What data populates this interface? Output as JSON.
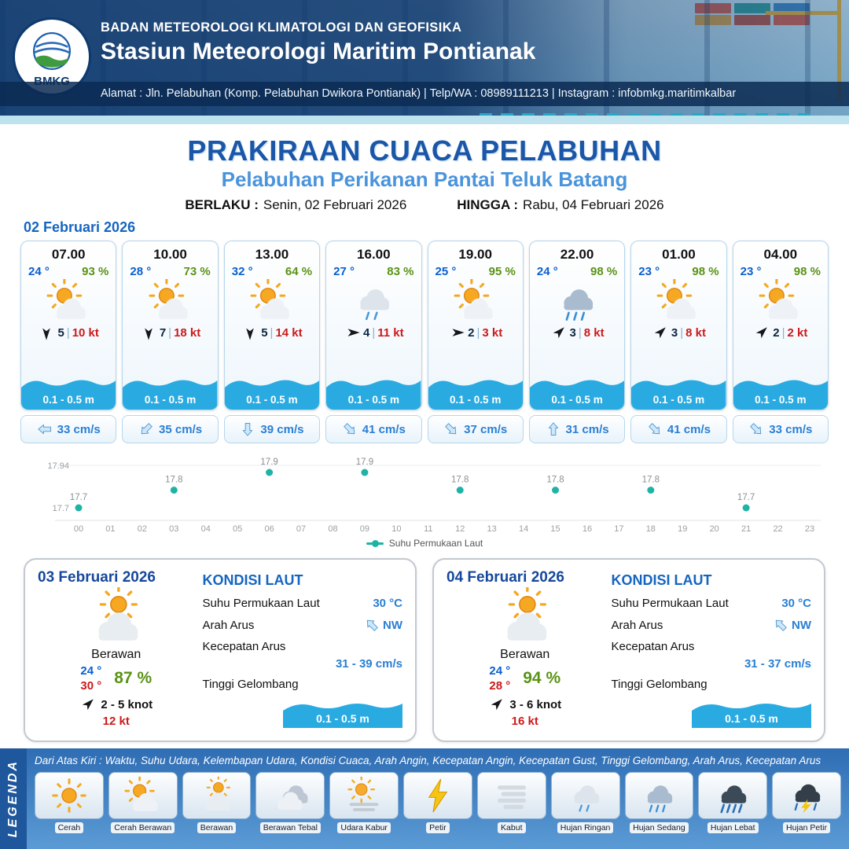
{
  "header": {
    "logo_text": "BMKG",
    "agency": "BADAN METEOROLOGI KLIMATOLOGI DAN GEOFISIKA",
    "station": "Stasiun Meteorologi Maritim Pontianak",
    "address": "Alamat : Jln. Pelabuhan (Komp. Pelabuhan Dwikora Pontianak) | Telp/WA : 08989111213 | Instagram : infobmkg.maritimkalbar"
  },
  "title": {
    "main": "PRAKIRAAN CUACA PELABUHAN",
    "subtitle": "Pelabuhan Perikanan Pantai Teluk Batang",
    "berlaku_label": "BERLAKU :",
    "berlaku_value": "Senin, 02 Februari 2026",
    "hingga_label": "HINGGA :",
    "hingga_value": "Rabu, 04 Februari 2026"
  },
  "forecast": {
    "date": "02 Februari 2026",
    "cards": [
      {
        "time": "07.00",
        "temp": "24 °",
        "humidity": "93 %",
        "icon": "cerah-berawan",
        "wind_dir": "down",
        "wind_speed": "5",
        "wind_gust": "10 kt",
        "wave": "0.1 - 0.5 m",
        "current_dir": "left",
        "current": "33 cm/s"
      },
      {
        "time": "10.00",
        "temp": "28 °",
        "humidity": "73 %",
        "icon": "cerah-berawan",
        "wind_dir": "down",
        "wind_speed": "7",
        "wind_gust": "18 kt",
        "wave": "0.1 - 0.5 m",
        "current_dir": "down-left",
        "current": "35 cm/s"
      },
      {
        "time": "13.00",
        "temp": "32 °",
        "humidity": "64 %",
        "icon": "cerah-berawan",
        "wind_dir": "down",
        "wind_speed": "5",
        "wind_gust": "14 kt",
        "wave": "0.1 - 0.5 m",
        "current_dir": "down",
        "current": "39 cm/s"
      },
      {
        "time": "16.00",
        "temp": "27 °",
        "humidity": "83 %",
        "icon": "hujan-ringan",
        "wind_dir": "right",
        "wind_speed": "4",
        "wind_gust": "11 kt",
        "wave": "0.1 - 0.5 m",
        "current_dir": "down-right",
        "current": "41 cm/s"
      },
      {
        "time": "19.00",
        "temp": "25 °",
        "humidity": "95 %",
        "icon": "cerah-berawan",
        "wind_dir": "right",
        "wind_speed": "2",
        "wind_gust": "3 kt",
        "wave": "0.1 - 0.5 m",
        "current_dir": "down-right",
        "current": "37 cm/s"
      },
      {
        "time": "22.00",
        "temp": "24 °",
        "humidity": "98 %",
        "icon": "hujan-sedang",
        "wind_dir": "up-right",
        "wind_speed": "3",
        "wind_gust": "8 kt",
        "wave": "0.1 - 0.5 m",
        "current_dir": "up",
        "current": "31 cm/s"
      },
      {
        "time": "01.00",
        "temp": "23 °",
        "humidity": "98 %",
        "icon": "cerah-berawan",
        "wind_dir": "up-right",
        "wind_speed": "3",
        "wind_gust": "8 kt",
        "wave": "0.1 - 0.5 m",
        "current_dir": "down-right",
        "current": "41 cm/s"
      },
      {
        "time": "04.00",
        "temp": "23 °",
        "humidity": "98 %",
        "icon": "cerah-berawan",
        "wind_dir": "up-right",
        "wind_speed": "2",
        "wind_gust": "2 kt",
        "wave": "0.1 - 0.5 m",
        "current_dir": "down-right",
        "current": "33 cm/s"
      }
    ]
  },
  "chart_data": {
    "type": "line",
    "series_name": "Suhu Permukaan Laut",
    "x": [
      0,
      3,
      6,
      9,
      12,
      15,
      18,
      21
    ],
    "values": [
      17.7,
      17.8,
      17.9,
      17.9,
      17.8,
      17.8,
      17.8,
      17.7
    ],
    "x_tick_labels": [
      "00",
      "01",
      "02",
      "03",
      "04",
      "05",
      "06",
      "07",
      "08",
      "09",
      "10",
      "11",
      "12",
      "13",
      "14",
      "15",
      "16",
      "17",
      "18",
      "19",
      "20",
      "21",
      "22",
      "23"
    ],
    "y_tick_labels": [
      "17.94",
      "17.7"
    ],
    "ylim": [
      17.7,
      17.94
    ],
    "grid": true,
    "legend_position": "bottom",
    "marker_color": "#1fb3a6"
  },
  "daily": [
    {
      "date": "03 Februari 2026",
      "icon": "berawan",
      "condition": "Berawan",
      "temp_min": "24 °",
      "temp_max": "30 °",
      "humidity": "87 %",
      "wind_dir": "up-right",
      "wind": "2 - 5 knot",
      "gust": "12 kt",
      "sea_title": "KONDISI LAUT",
      "sst_label": "Suhu Permukaan Laut",
      "sst": "30 °C",
      "arah_label": "Arah Arus",
      "arah_dir": "up-left",
      "arah": "NW",
      "kec_label": "Kecepatan Arus",
      "kec": "31 - 39 cm/s",
      "gel_label": "Tinggi Gelombang",
      "gel": "0.1 - 0.5 m"
    },
    {
      "date": "04 Februari 2026",
      "icon": "berawan",
      "condition": "Berawan",
      "temp_min": "24 °",
      "temp_max": "28 °",
      "humidity": "94 %",
      "wind_dir": "up-right",
      "wind": "3 - 6 knot",
      "gust": "16 kt",
      "sea_title": "KONDISI LAUT",
      "sst_label": "Suhu Permukaan Laut",
      "sst": "30 °C",
      "arah_label": "Arah Arus",
      "arah_dir": "up-left",
      "arah": "NW",
      "kec_label": "Kecepatan Arus",
      "kec": "31 - 37 cm/s",
      "gel_label": "Tinggi Gelombang",
      "gel": "0.1 - 0.5 m"
    }
  ],
  "legend": {
    "title": "LEGENDA",
    "description": "Dari Atas Kiri : Waktu, Suhu Udara, Kelembapan Udara, Kondisi Cuaca, Arah Angin, Kecepatan Angin, Kecepatan Gust, Tinggi Gelombang, Arah Arus, Kecepatan Arus",
    "items": [
      {
        "label": "Cerah",
        "icon": "cerah"
      },
      {
        "label": "Cerah Berawan",
        "icon": "cerah-berawan"
      },
      {
        "label": "Berawan",
        "icon": "berawan"
      },
      {
        "label": "Berawan Tebal",
        "icon": "berawan-tebal"
      },
      {
        "label": "Udara Kabur",
        "icon": "udara-kabur"
      },
      {
        "label": "Petir",
        "icon": "petir"
      },
      {
        "label": "Kabut",
        "icon": "kabut"
      },
      {
        "label": "Hujan Ringan",
        "icon": "hujan-ringan"
      },
      {
        "label": "Hujan Sedang",
        "icon": "hujan-sedang"
      },
      {
        "label": "Hujan Lebat",
        "icon": "hujan-lebat"
      },
      {
        "label": "Hujan Petir",
        "icon": "hujan-petir"
      }
    ]
  },
  "colors": {
    "header_blue": "#0f386c",
    "title_blue": "#1a57a8",
    "subtitle_blue": "#4a94dc",
    "temp_blue": "#0a5fd0",
    "humidity_green": "#5a9216",
    "gust_red": "#cc1a1a",
    "wave_blue": "#29abe2",
    "current_blue": "#2a7fd4",
    "chart_teal": "#1fb3a6"
  }
}
